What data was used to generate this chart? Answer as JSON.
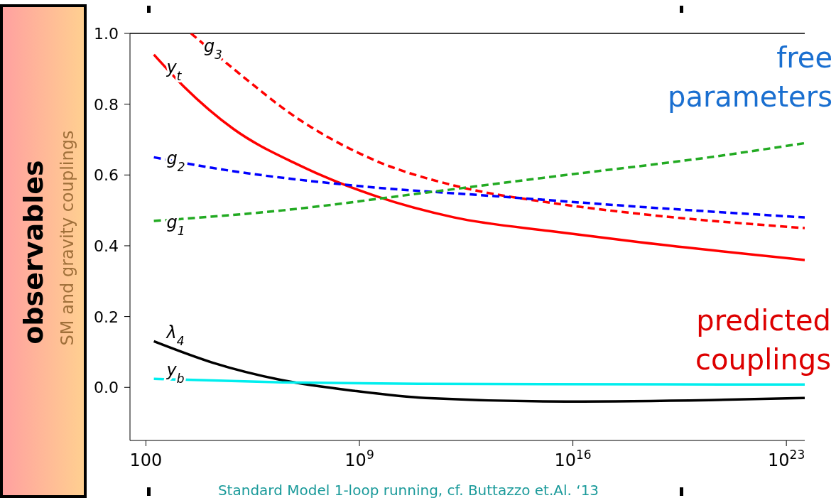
{
  "chart_data": {
    "type": "line",
    "ylabel": "SM and gravity couplings",
    "xlim": [
      30,
      4e+23
    ],
    "ylim": [
      -0.15,
      1.0
    ],
    "log": "x",
    "marker": "none",
    "xticks": [
      {
        "value": 100,
        "label": "100"
      },
      {
        "value": 1000000000.0,
        "label": "10$^{9}$"
      },
      {
        "value": 1e+16,
        "label": "10$^{16}$"
      },
      {
        "value": 1e+23,
        "label": "10$^{23}$"
      }
    ],
    "yticks": [
      {
        "value": 0,
        "label": "0.0"
      },
      {
        "value": 0.2,
        "label": "0.2"
      },
      {
        "value": 0.4,
        "label": "0.4"
      },
      {
        "value": 0.6,
        "label": "0.6"
      },
      {
        "value": 0.8,
        "label": "0.8"
      },
      {
        "value": 1,
        "label": "1.0"
      }
    ],
    "annotations": [
      "observables",
      "free parameters",
      "predicted couplings",
      "Standard Model 1-loop running, cf. Buttazzo et.Al. ‘13"
    ],
    "series": [
      {
        "name": "y$_{t}$",
        "color": "#ff0000",
        "line_style": "solid",
        "x": [
          182,
          1740,
          74000,
          9300000.0,
          3500000000.0,
          1300000000000.0,
          2500000000000000.0,
          1.6e+18,
          4e+23
        ],
        "values": [
          0.94,
          0.85,
          0.73,
          0.63,
          0.54,
          0.48,
          0.44,
          0.41,
          0.36
        ]
      },
      {
        "name": "g$_{3}$",
        "color": "#ff0000",
        "line_style": "dashed",
        "x": [
          3000,
          74000,
          9300000.0,
          3500000000.0,
          1300000000000.0,
          2500000000000000.0,
          1.6e+18,
          4e+23
        ],
        "values": [
          1.0,
          0.9,
          0.76,
          0.64,
          0.57,
          0.52,
          0.49,
          0.45
        ]
      },
      {
        "name": "g$_{2}$",
        "color": "#0000ff",
        "line_style": "dashed",
        "x": [
          182,
          15000,
          700000000.0,
          30000000000000.0,
          1.6e+18,
          4e+23
        ],
        "values": [
          0.65,
          0.62,
          0.57,
          0.54,
          0.51,
          0.48
        ]
      },
      {
        "name": "g$_{1}$",
        "color": "#22aa22",
        "line_style": "dashed",
        "x": [
          182,
          3000000.0,
          150000000000.0,
          6000000000000000.0,
          3e+20,
          4e+23
        ],
        "values": [
          0.47,
          0.5,
          0.55,
          0.6,
          0.65,
          0.69
        ]
      },
      {
        "name": "λ$_{4}$",
        "color": "#000000",
        "line_style": "solid",
        "x": [
          182,
          15000,
          3000000.0,
          700000000.0,
          150000000000.0,
          6000000000000000.0,
          3e+20,
          4e+23
        ],
        "values": [
          0.13,
          0.07,
          0.02,
          -0.01,
          -0.03,
          -0.04,
          -0.036,
          -0.03
        ]
      },
      {
        "name": "y$_{b}$",
        "color": "#00eeee",
        "line_style": "solid",
        "x": [
          182,
          3000000.0,
          150000000000.0,
          4e+23
        ],
        "values": [
          0.024,
          0.014,
          0.01,
          0.008
        ]
      }
    ]
  }
}
